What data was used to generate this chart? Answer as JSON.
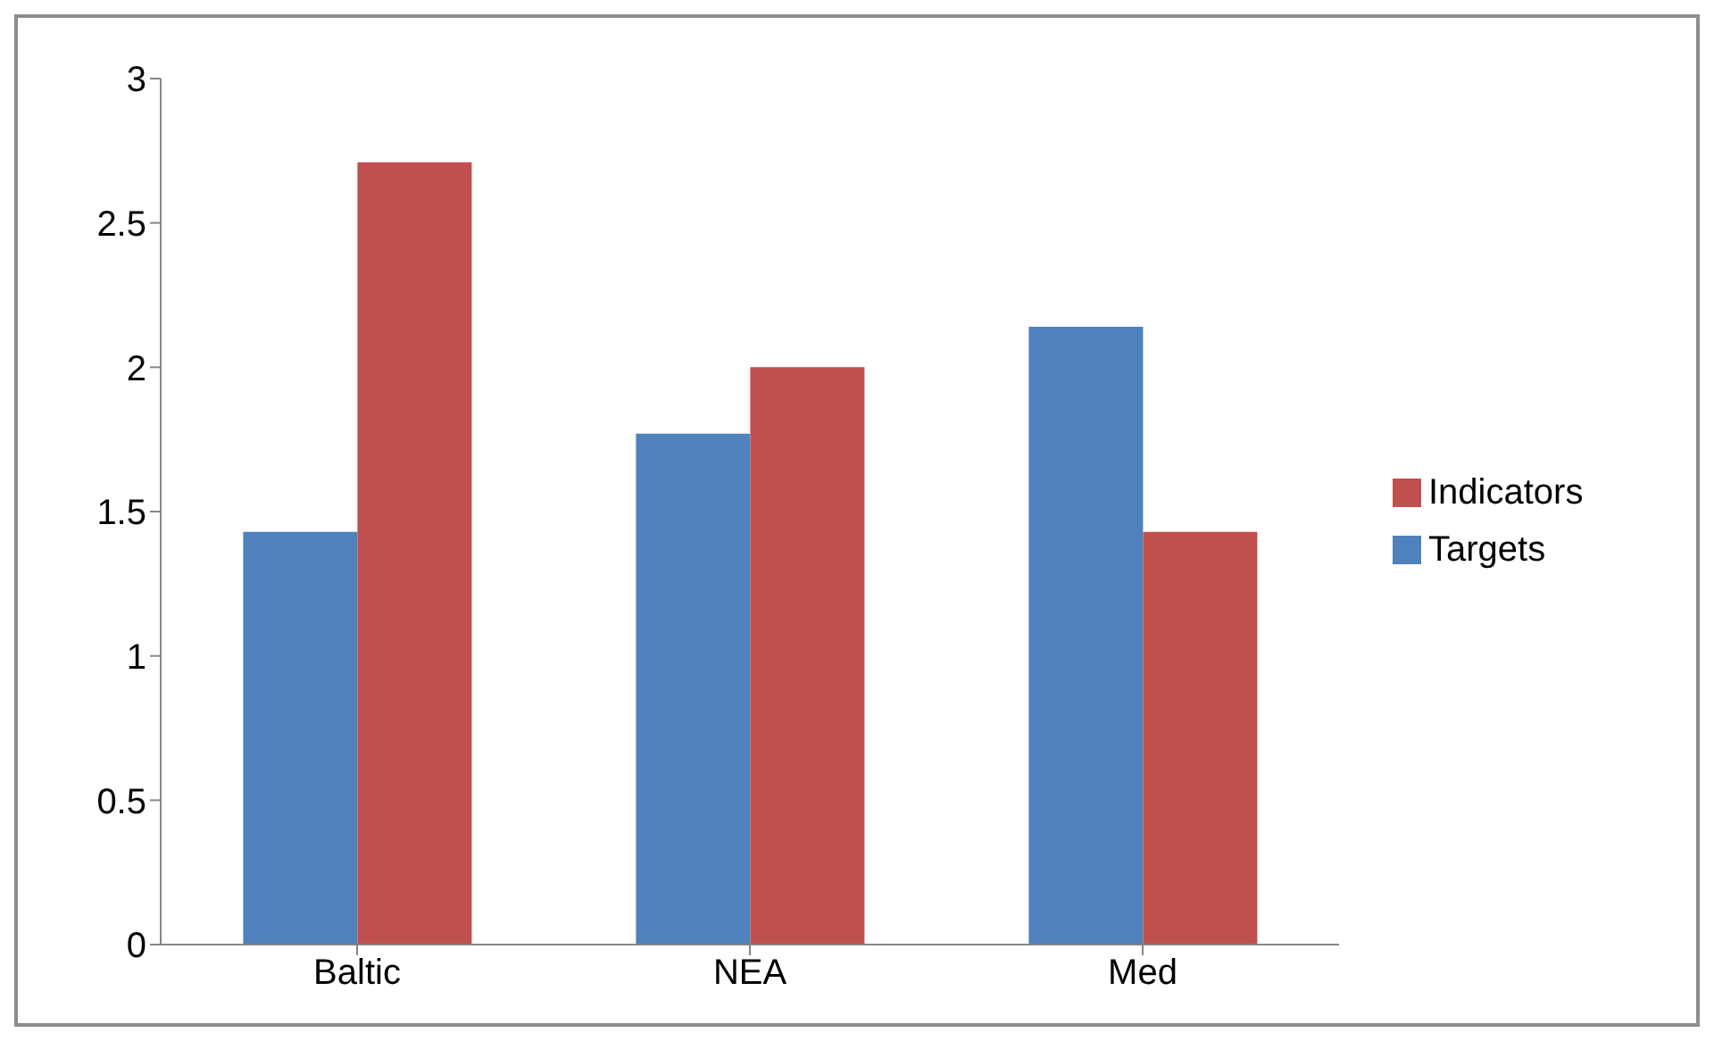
{
  "chart_data": {
    "type": "bar",
    "categories": [
      "Baltic",
      "NEA",
      "Med"
    ],
    "series": [
      {
        "name": "Targets",
        "color": "#4f81bd",
        "values": [
          1.43,
          1.77,
          2.14
        ]
      },
      {
        "name": "Indicators",
        "color": "#c0504d",
        "values": [
          2.71,
          2.0,
          1.43
        ]
      }
    ],
    "ylim": [
      0,
      3
    ],
    "yticks": [
      0,
      0.5,
      1,
      1.5,
      2,
      2.5,
      3
    ],
    "grid": false,
    "legend": "right"
  }
}
